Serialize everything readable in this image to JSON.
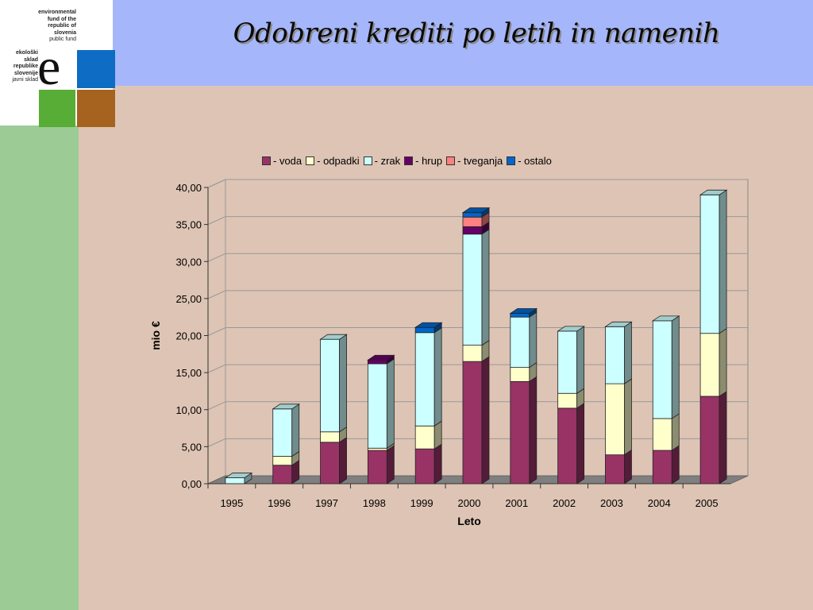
{
  "slide": {
    "title": "Odobreni krediti po letih in namenih"
  },
  "logo": {
    "en_lines": [
      "environmental",
      "fund of the",
      "republic of",
      "slovenia"
    ],
    "en_sub": "public fund",
    "sl_lines": [
      "ekološki",
      "sklad",
      "republike",
      "slovenije"
    ],
    "sl_sub": "javni sklad",
    "letter": "e",
    "colors": {
      "blue": "#0e6cc4",
      "green": "#57ad35",
      "brown": "#a6621f"
    }
  },
  "colors": {
    "header": "#a5b6fb",
    "sidebar": "#9ccb96",
    "background": "#dec4b4"
  },
  "chart_data": {
    "type": "bar",
    "stacked": true,
    "three_d": true,
    "xlabel": "Leto",
    "ylabel": "mio €",
    "ylim": [
      0,
      40
    ],
    "yticks": [
      "0,00",
      "5,00",
      "10,00",
      "15,00",
      "20,00",
      "25,00",
      "30,00",
      "35,00",
      "40,00"
    ],
    "grid": true,
    "legend_position": "top",
    "categories": [
      "1995",
      "1996",
      "1997",
      "1998",
      "1999",
      "2000",
      "2001",
      "2002",
      "2003",
      "2004",
      "2005"
    ],
    "series": [
      {
        "name": "- voda",
        "color": "#993366",
        "values": [
          0,
          2.5,
          5.6,
          4.5,
          4.7,
          16.5,
          13.8,
          10.2,
          3.9,
          4.5,
          11.8
        ]
      },
      {
        "name": "- odpadki",
        "color": "#ffffcc",
        "values": [
          0,
          1.2,
          1.4,
          0.3,
          3.1,
          2.2,
          1.9,
          2.0,
          9.6,
          4.3,
          8.5
        ]
      },
      {
        "name": "- zrak",
        "color": "#ccffff",
        "values": [
          0.8,
          6.4,
          12.5,
          11.4,
          12.6,
          15.0,
          6.8,
          8.4,
          7.7,
          13.2,
          18.7
        ]
      },
      {
        "name": "- hrup",
        "color": "#660066",
        "values": [
          0,
          0,
          0,
          0.5,
          0,
          1.0,
          0,
          0,
          0,
          0,
          0
        ]
      },
      {
        "name": "- tveganja",
        "color": "#ff8080",
        "values": [
          0,
          0,
          0,
          0,
          0,
          1.3,
          0,
          0,
          0,
          0,
          0
        ]
      },
      {
        "name": "- ostalo",
        "color": "#0066cc",
        "values": [
          0,
          0,
          0,
          0,
          0.7,
          0.6,
          0.5,
          0,
          0,
          0,
          0
        ]
      }
    ]
  }
}
